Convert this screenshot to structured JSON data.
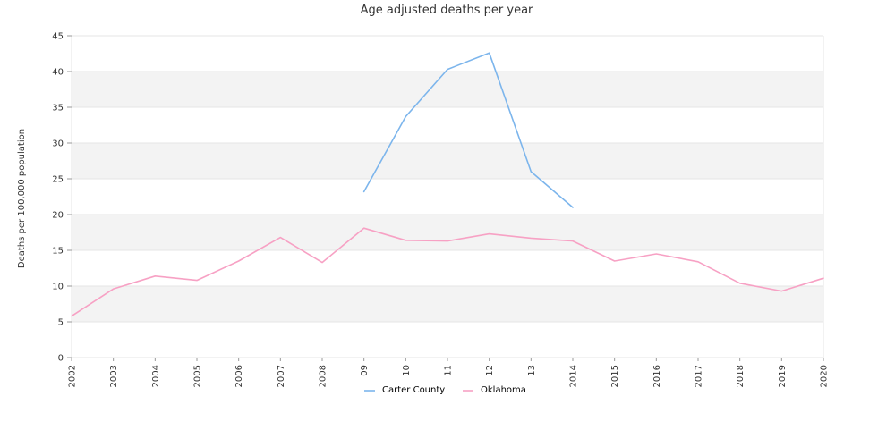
{
  "chart_data": {
    "type": "line",
    "title": "Age adjusted deaths per year",
    "xlabel": "",
    "ylabel": "Deaths per 100,000 population",
    "ylim": [
      0,
      45
    ],
    "yticks": [
      0,
      5,
      10,
      15,
      20,
      25,
      30,
      35,
      40,
      45
    ],
    "categories": [
      "2002",
      "2003",
      "2004",
      "2005",
      "2006",
      "2007",
      "2008",
      "09",
      "10",
      "11",
      "12",
      "13",
      "2014",
      "2015",
      "2016",
      "2017",
      "2018",
      "2019",
      "2020"
    ],
    "grid": "horizontal alternating bands",
    "legend_position": "bottom",
    "series": [
      {
        "name": "Carter County",
        "color": "#7cb5ec",
        "values": [
          null,
          null,
          null,
          null,
          null,
          null,
          null,
          23.2,
          33.7,
          40.3,
          42.6,
          26.0,
          21.0,
          null,
          null,
          null,
          null,
          null,
          null
        ]
      },
      {
        "name": "Oklahoma",
        "color": "#f7a1c4",
        "values": [
          5.8,
          9.6,
          11.4,
          10.8,
          13.5,
          16.8,
          13.3,
          18.1,
          16.4,
          16.3,
          17.3,
          16.7,
          16.3,
          13.5,
          14.5,
          13.4,
          10.4,
          9.3,
          11.1
        ]
      }
    ]
  }
}
